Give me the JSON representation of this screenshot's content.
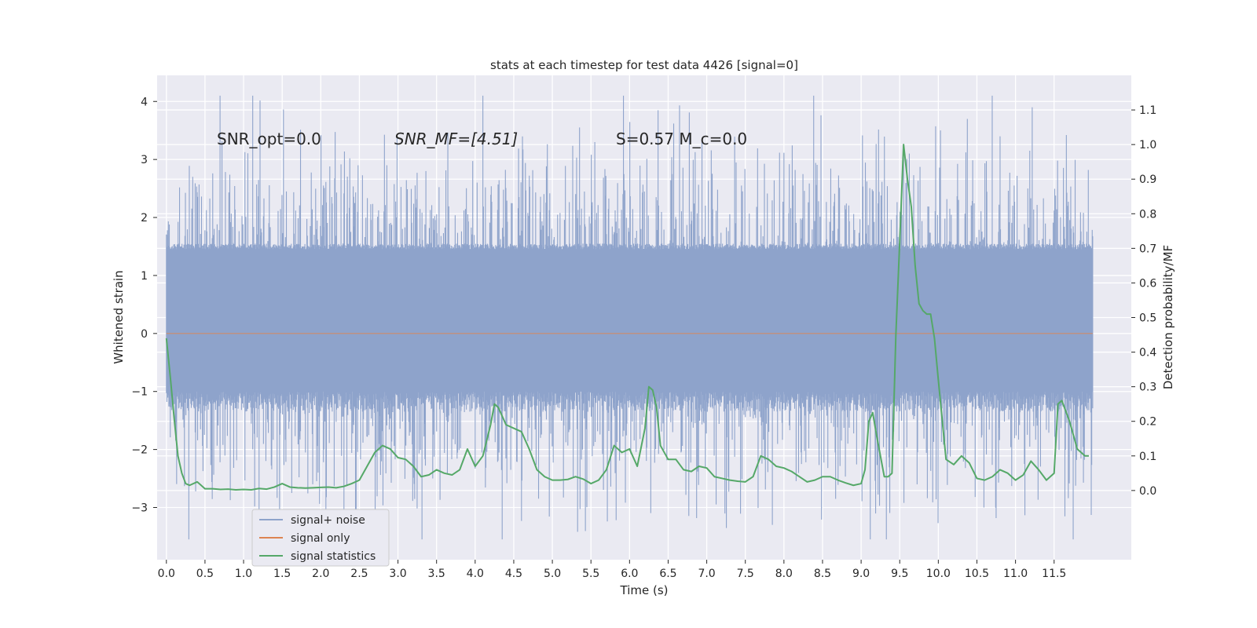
{
  "chart_data": {
    "type": "line",
    "title": "stats at each timestep for test data 4426 [signal=0]",
    "xlabel": "Time (s)",
    "ylabel": "Whitened strain",
    "y2label": "Detection probability/MF",
    "xlim": [
      -0.12,
      12.5
    ],
    "ylim": [
      -3.9,
      4.45
    ],
    "y2lim": [
      -0.2,
      1.2
    ],
    "x_ticks": [
      0,
      0.5,
      1.0,
      1.5,
      2.0,
      2.5,
      3.0,
      3.5,
      4.0,
      4.5,
      5.0,
      5.5,
      6.0,
      6.5,
      7.0,
      7.5,
      8.0,
      8.5,
      9.0,
      9.5,
      10.0,
      10.5,
      11.0,
      11.5
    ],
    "x_tick_labels": [
      "0.0",
      "0.5",
      "1.0",
      "1.5",
      "2.0",
      "2.5",
      "3.0",
      "3.5",
      "4.0",
      "4.5",
      "5.0",
      "5.5",
      "6.0",
      "6.5",
      "7.0",
      "7.5",
      "8.0",
      "8.5",
      "9.0",
      "9.5",
      "10.0",
      "10.5",
      "11.0",
      "11.5"
    ],
    "y_ticks": [
      -3,
      -2,
      -1,
      0,
      1,
      2,
      3,
      4
    ],
    "y_tick_labels": [
      "−3",
      "−2",
      "−1",
      "0",
      "1",
      "2",
      "3",
      "4"
    ],
    "y2_ticks": [
      0.0,
      0.1,
      0.2,
      0.3,
      0.4,
      0.5,
      0.6,
      0.7,
      0.8,
      0.9,
      1.0,
      1.1
    ],
    "y2_tick_labels": [
      "0.0",
      "0.1",
      "0.2",
      "0.3",
      "0.4",
      "0.5",
      "0.6",
      "0.7",
      "0.8",
      "0.9",
      "1.0",
      "1.1"
    ],
    "grid": true,
    "legend_position": "bottom-left",
    "annotations": [
      {
        "text": "SNR_opt=0.0"
      },
      {
        "text": "SNR_MF=[4.51]"
      },
      {
        "text": "S=0.57   M_c=0.0"
      }
    ],
    "series": [
      {
        "name": "signal+ noise",
        "color": "#8ea3cb",
        "axis": "left",
        "x_range": [
          0,
          12
        ],
        "y_envelope": {
          "lower": [
            -3.55,
            -1.0
          ],
          "upper": [
            1.5,
            4.1
          ]
        }
      },
      {
        "name": "signal only",
        "color": "#dd8452",
        "axis": "left",
        "x": [
          0,
          12
        ],
        "y": [
          0,
          0
        ]
      },
      {
        "name": "signal statistics",
        "color": "#55a868",
        "axis": "right",
        "x": [
          0.0,
          0.05,
          0.1,
          0.15,
          0.2,
          0.25,
          0.3,
          0.4,
          0.5,
          0.6,
          0.7,
          0.8,
          0.9,
          1.0,
          1.1,
          1.2,
          1.3,
          1.4,
          1.5,
          1.6,
          1.7,
          1.8,
          1.9,
          2.0,
          2.1,
          2.2,
          2.3,
          2.4,
          2.5,
          2.6,
          2.7,
          2.8,
          2.9,
          3.0,
          3.1,
          3.2,
          3.3,
          3.4,
          3.5,
          3.6,
          3.7,
          3.8,
          3.9,
          4.0,
          4.1,
          4.2,
          4.25,
          4.3,
          4.4,
          4.5,
          4.6,
          4.7,
          4.8,
          4.9,
          5.0,
          5.1,
          5.2,
          5.3,
          5.4,
          5.5,
          5.6,
          5.7,
          5.8,
          5.9,
          6.0,
          6.1,
          6.2,
          6.25,
          6.3,
          6.35,
          6.4,
          6.5,
          6.6,
          6.7,
          6.8,
          6.9,
          7.0,
          7.1,
          7.2,
          7.3,
          7.4,
          7.5,
          7.6,
          7.7,
          7.8,
          7.9,
          8.0,
          8.1,
          8.2,
          8.3,
          8.4,
          8.5,
          8.6,
          8.7,
          8.8,
          8.9,
          9.0,
          9.05,
          9.1,
          9.15,
          9.2,
          9.3,
          9.35,
          9.4,
          9.45,
          9.5,
          9.55,
          9.6,
          9.65,
          9.7,
          9.75,
          9.8,
          9.85,
          9.9,
          9.95,
          10.0,
          10.1,
          10.2,
          10.3,
          10.4,
          10.5,
          10.6,
          10.7,
          10.8,
          10.9,
          11.0,
          11.1,
          11.2,
          11.3,
          11.4,
          11.5,
          11.55,
          11.6,
          11.7,
          11.8,
          11.9,
          11.95
        ],
        "y": [
          0.44,
          0.33,
          0.21,
          0.1,
          0.05,
          0.02,
          0.015,
          0.025,
          0.005,
          0.005,
          0.003,
          0.004,
          0.002,
          0.003,
          0.002,
          0.006,
          0.004,
          0.01,
          0.02,
          0.01,
          0.008,
          0.007,
          0.008,
          0.009,
          0.01,
          0.008,
          0.012,
          0.02,
          0.03,
          0.07,
          0.11,
          0.13,
          0.12,
          0.095,
          0.09,
          0.07,
          0.04,
          0.045,
          0.06,
          0.05,
          0.045,
          0.06,
          0.12,
          0.07,
          0.1,
          0.19,
          0.25,
          0.24,
          0.19,
          0.18,
          0.17,
          0.12,
          0.06,
          0.04,
          0.03,
          0.03,
          0.032,
          0.04,
          0.033,
          0.02,
          0.03,
          0.06,
          0.13,
          0.11,
          0.12,
          0.07,
          0.18,
          0.3,
          0.29,
          0.24,
          0.13,
          0.09,
          0.09,
          0.06,
          0.055,
          0.07,
          0.065,
          0.04,
          0.035,
          0.03,
          0.027,
          0.025,
          0.04,
          0.1,
          0.09,
          0.07,
          0.065,
          0.055,
          0.04,
          0.025,
          0.03,
          0.04,
          0.04,
          0.03,
          0.022,
          0.015,
          0.02,
          0.06,
          0.2,
          0.225,
          0.16,
          0.04,
          0.04,
          0.05,
          0.45,
          0.72,
          1.0,
          0.9,
          0.82,
          0.65,
          0.54,
          0.52,
          0.51,
          0.51,
          0.44,
          0.32,
          0.09,
          0.075,
          0.1,
          0.08,
          0.035,
          0.03,
          0.04,
          0.06,
          0.05,
          0.03,
          0.045,
          0.085,
          0.06,
          0.03,
          0.05,
          0.25,
          0.26,
          0.2,
          0.12,
          0.1,
          0.1
        ]
      }
    ]
  }
}
